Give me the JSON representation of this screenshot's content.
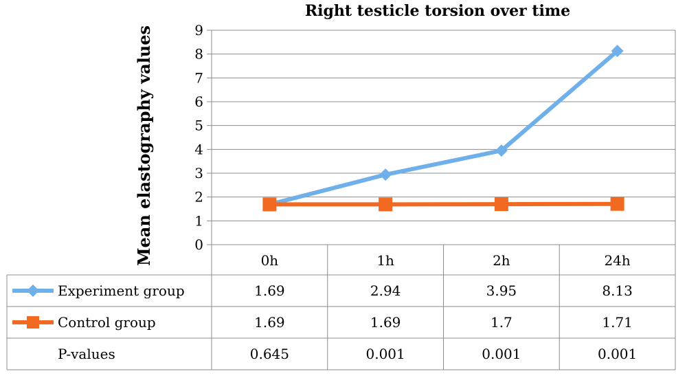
{
  "chart_data": {
    "type": "line",
    "title": "Right testicle torsion over time",
    "xlabel": "",
    "ylabel": "Mean elastography values",
    "ylim": [
      0,
      9
    ],
    "yticks": [
      0,
      1,
      2,
      3,
      4,
      5,
      6,
      7,
      8,
      9
    ],
    "grid": true,
    "categories": [
      "0h",
      "1h",
      "2h",
      "24h"
    ],
    "series": [
      {
        "name": "Experiment group",
        "values": [
          1.69,
          2.94,
          3.95,
          8.13
        ],
        "color": "#6fb0ea",
        "marker": "diamond"
      },
      {
        "name": "Control group",
        "values": [
          1.69,
          1.69,
          1.7,
          1.71
        ],
        "color": "#f26a22",
        "marker": "square"
      }
    ],
    "data_table": {
      "extra_rows": [
        {
          "name": "P-values",
          "values": [
            "0.645",
            "0.001",
            "0.001",
            "0.001"
          ]
        }
      ]
    }
  }
}
